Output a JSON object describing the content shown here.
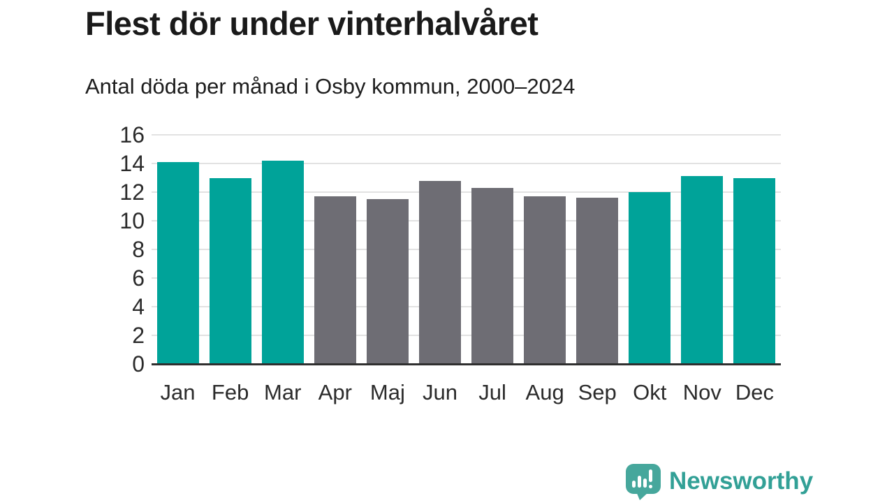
{
  "title": "Flest dör under vinterhalvåret",
  "subtitle": "Antal döda per månad i Osby kommun, 2000–2024",
  "footer": {
    "brand": "Newsworthy"
  },
  "colors": {
    "teal": "#00a399",
    "gray": "#6e6d74",
    "grid": "#e2e2e2",
    "axis": "#2f2f2f",
    "tick_text": "#2b2b2b",
    "title_text": "#1a1a1a",
    "logo_icon": "#46a79c",
    "logo_text": "#32a096"
  },
  "chart_data": {
    "type": "bar",
    "title": "Flest dör under vinterhalvåret",
    "subtitle": "Antal döda per månad i Osby kommun, 2000–2024",
    "categories": [
      "Jan",
      "Feb",
      "Mar",
      "Apr",
      "Maj",
      "Jun",
      "Jul",
      "Aug",
      "Sep",
      "Okt",
      "Nov",
      "Dec"
    ],
    "values": [
      14.1,
      13.0,
      14.2,
      11.7,
      11.5,
      12.8,
      12.3,
      11.7,
      11.6,
      12.0,
      13.1,
      13.0
    ],
    "bar_colors": [
      "teal",
      "teal",
      "teal",
      "gray",
      "gray",
      "gray",
      "gray",
      "gray",
      "gray",
      "teal",
      "teal",
      "teal"
    ],
    "color_meaning": "teal = vinterhalvår (okt–mar), gray = sommarhalvår (apr–sep)",
    "xlabel": "",
    "ylabel": "",
    "ylim": [
      0,
      16
    ],
    "yticks": [
      0,
      2,
      4,
      6,
      8,
      10,
      12,
      14,
      16
    ],
    "grid": true,
    "legend_position": "none"
  }
}
